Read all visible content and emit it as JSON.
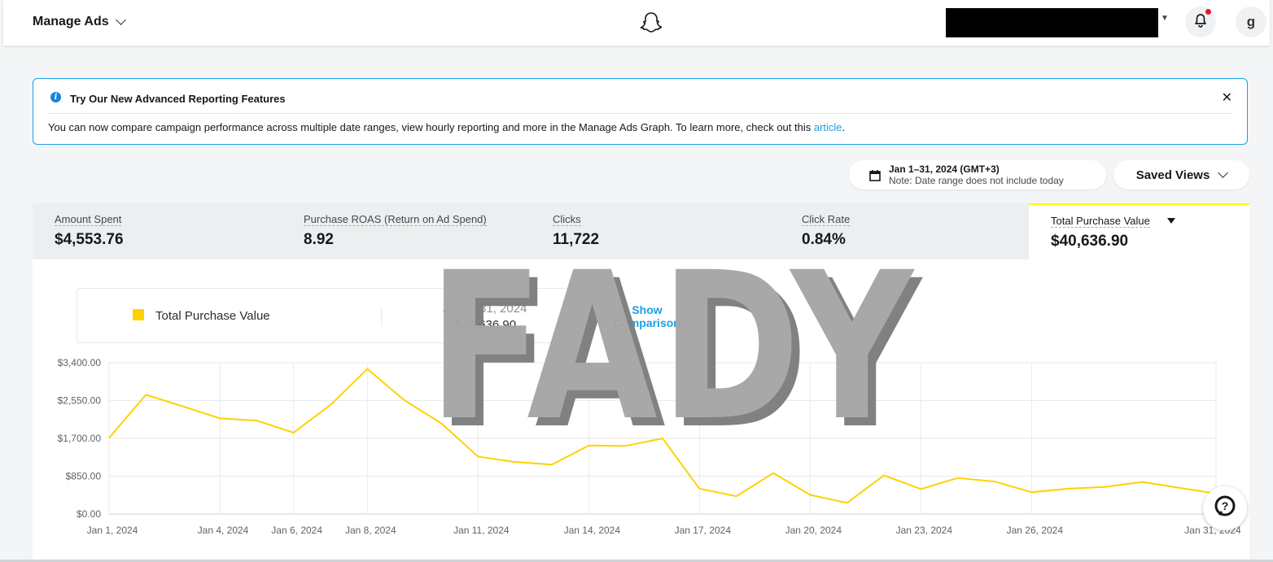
{
  "header": {
    "app_menu_label": "Manage Ads",
    "avatar_initial": "g"
  },
  "banner": {
    "title": "Try Our New Advanced Reporting Features",
    "body": "You can now compare campaign performance across multiple date ranges, view hourly reporting and more in the Manage Ads Graph. To learn more, check out this ",
    "link_text": "article",
    "body_end": ".",
    "close_glyph": "✕"
  },
  "controls": {
    "date_range": "Jan 1–31, 2024 (GMT+3)",
    "date_note": "Note: Date range does not include today",
    "saved_views_label": "Saved Views"
  },
  "metrics": [
    {
      "label": "Amount Spent",
      "value": "$4,553.76"
    },
    {
      "label": "Purchase ROAS (Return on Ad Spend)",
      "value": "8.92"
    },
    {
      "label": "Clicks",
      "value": "11,722"
    },
    {
      "label": "Click Rate",
      "value": "0.84%"
    },
    {
      "label": "Total Purchase Value",
      "value": "$40,636.90"
    }
  ],
  "legend": {
    "series_label": "Total Purchase Value",
    "range": "Jan 1–31, 2024",
    "total": "$40,636.90",
    "show_comparison": "Show Comparison"
  },
  "watermark": "FADY",
  "colors": {
    "accent_blue": "#1aa0e4",
    "series_yellow": "#fed200",
    "active_tab_border": "#fffc00"
  },
  "chart_data": {
    "type": "line",
    "ylim": [
      0,
      3400
    ],
    "yticks": [
      "$0.00",
      "$850.00",
      "$1,700.00",
      "$2,550.00",
      "$3,400.00"
    ],
    "xtick_labels": [
      "Jan 1, 2024",
      "Jan 4, 2024",
      "Jan 6, 2024",
      "Jan 8, 2024",
      "Jan 11, 2024",
      "Jan 14, 2024",
      "Jan 17, 2024",
      "Jan 20, 2024",
      "Jan 23, 2024",
      "Jan 26, 2024",
      "Jan 31, 2024"
    ],
    "xtick_days": [
      1,
      4,
      6,
      8,
      11,
      14,
      17,
      20,
      23,
      26,
      31
    ],
    "series": [
      {
        "name": "Total Purchase Value",
        "x": [
          1,
          2,
          3,
          4,
          5,
          6,
          7,
          8,
          9,
          10,
          11,
          12,
          13,
          14,
          15,
          16,
          17,
          18,
          19,
          20,
          21,
          22,
          23,
          24,
          25,
          26,
          27,
          28,
          29,
          30,
          31
        ],
        "values": [
          1710,
          2680,
          2420,
          2150,
          2100,
          1830,
          2450,
          3260,
          2560,
          2040,
          1290,
          1170,
          1110,
          1540,
          1530,
          1700,
          570,
          400,
          920,
          430,
          250,
          870,
          560,
          810,
          730,
          490,
          570,
          610,
          720,
          590,
          460
        ]
      }
    ],
    "grid": true
  }
}
